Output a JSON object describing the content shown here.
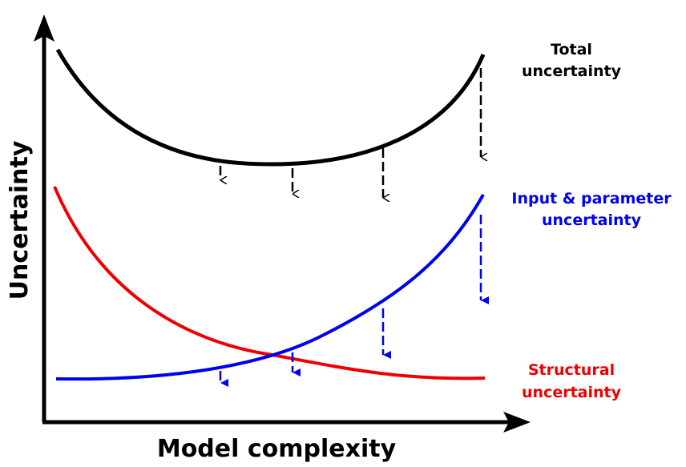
{
  "axes": {
    "x_label": "Model complexity",
    "y_label": "Uncertainty"
  },
  "curves": [
    {
      "lines": [
        "Total",
        "uncertainty"
      ]
    },
    {
      "lines": [
        "Input & parameter",
        "uncertainty"
      ]
    },
    {
      "lines": [
        "Structural",
        "uncertainty"
      ]
    }
  ]
}
